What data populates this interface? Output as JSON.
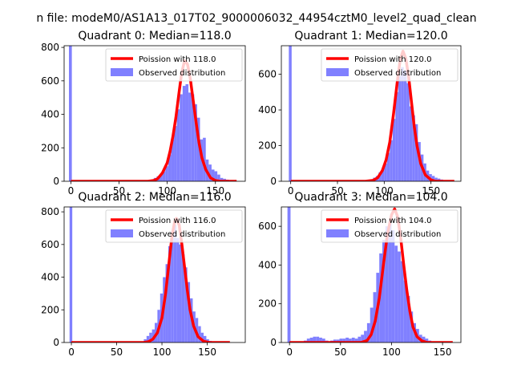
{
  "figure": {
    "suptitle": "n file: modeM0/AS1A13_017T02_9000006032_44954cztM0_level2_quad_clean"
  },
  "chart_data": [
    {
      "type": "bar",
      "title": "Quadrant 0: Median=118.0",
      "xlim": [
        -7,
        181
      ],
      "ylim": [
        0,
        810
      ],
      "xticks": [
        0,
        50,
        100,
        150
      ],
      "yticks": [
        0,
        200,
        400,
        600,
        800
      ],
      "legend": {
        "placement": "top-right",
        "entries": [
          "Poission with 118.0",
          "Observed distribution"
        ]
      },
      "histogram": {
        "name": "Observed distribution",
        "color": "#8080ff",
        "bin_width": 3,
        "bins": [
          [
            -2,
            1,
            810
          ],
          [
            86,
            89,
            20
          ],
          [
            89,
            92,
            30
          ],
          [
            92,
            95,
            40
          ],
          [
            95,
            98,
            60
          ],
          [
            98,
            101,
            90
          ],
          [
            101,
            104,
            160
          ],
          [
            104,
            107,
            250
          ],
          [
            107,
            110,
            330
          ],
          [
            110,
            113,
            430
          ],
          [
            113,
            116,
            520
          ],
          [
            116,
            119,
            570
          ],
          [
            119,
            122,
            580
          ],
          [
            122,
            125,
            530
          ],
          [
            125,
            128,
            520
          ],
          [
            128,
            131,
            460
          ],
          [
            131,
            134,
            380
          ],
          [
            134,
            137,
            250
          ],
          [
            137,
            140,
            260
          ],
          [
            140,
            143,
            130
          ],
          [
            143,
            146,
            100
          ],
          [
            146,
            149,
            70
          ],
          [
            149,
            152,
            60
          ],
          [
            152,
            155,
            40
          ],
          [
            155,
            158,
            20
          ],
          [
            158,
            161,
            15
          ],
          [
            161,
            164,
            10
          ]
        ]
      },
      "curve": {
        "name": "Poission with 118.0",
        "color": "#ff0000",
        "lambda": 118,
        "x_range": [
          0,
          172
        ],
        "samples": [
          [
            0,
            0
          ],
          [
            80,
            0
          ],
          [
            86,
            5
          ],
          [
            90,
            15
          ],
          [
            95,
            50
          ],
          [
            100,
            110
          ],
          [
            103,
            180
          ],
          [
            106,
            270
          ],
          [
            109,
            380
          ],
          [
            112,
            520
          ],
          [
            115,
            650
          ],
          [
            118,
            720
          ],
          [
            121,
            700
          ],
          [
            124,
            610
          ],
          [
            127,
            480
          ],
          [
            130,
            350
          ],
          [
            133,
            230
          ],
          [
            136,
            140
          ],
          [
            140,
            70
          ],
          [
            145,
            20
          ],
          [
            150,
            5
          ],
          [
            155,
            0
          ],
          [
            172,
            0
          ]
        ]
      }
    },
    {
      "type": "bar",
      "title": "Quadrant 1: Median=120.0",
      "xlim": [
        -10,
        182
      ],
      "ylim": [
        0,
        760
      ],
      "xticks": [
        0,
        50,
        100,
        150
      ],
      "yticks": [
        0,
        200,
        400,
        600
      ],
      "legend": {
        "placement": "top-right",
        "entries": [
          "Poission with 120.0",
          "Observed distribution"
        ]
      },
      "histogram": {
        "name": "Observed distribution",
        "color": "#8080ff",
        "bin_width": 3,
        "bins": [
          [
            -2,
            1,
            760
          ],
          [
            10,
            13,
            3
          ],
          [
            20,
            23,
            3
          ],
          [
            40,
            43,
            2
          ],
          [
            60,
            63,
            2
          ],
          [
            85,
            88,
            10
          ],
          [
            88,
            91,
            20
          ],
          [
            91,
            94,
            30
          ],
          [
            94,
            97,
            50
          ],
          [
            97,
            100,
            70
          ],
          [
            100,
            103,
            100
          ],
          [
            103,
            106,
            160
          ],
          [
            106,
            109,
            230
          ],
          [
            109,
            112,
            350
          ],
          [
            112,
            115,
            500
          ],
          [
            115,
            118,
            590
          ],
          [
            118,
            121,
            640
          ],
          [
            121,
            124,
            620
          ],
          [
            124,
            127,
            550
          ],
          [
            127,
            130,
            420
          ],
          [
            130,
            133,
            370
          ],
          [
            133,
            136,
            320
          ],
          [
            136,
            139,
            220
          ],
          [
            139,
            142,
            150
          ],
          [
            142,
            145,
            100
          ],
          [
            145,
            148,
            60
          ],
          [
            148,
            151,
            40
          ],
          [
            151,
            154,
            30
          ],
          [
            154,
            157,
            20
          ],
          [
            157,
            160,
            15
          ],
          [
            160,
            163,
            10
          ],
          [
            163,
            166,
            5
          ]
        ]
      },
      "curve": {
        "name": "Poission with 120.0",
        "color": "#ff0000",
        "lambda": 120,
        "x_range": [
          0,
          175
        ],
        "samples": [
          [
            0,
            0
          ],
          [
            80,
            0
          ],
          [
            88,
            5
          ],
          [
            93,
            20
          ],
          [
            98,
            60
          ],
          [
            102,
            120
          ],
          [
            106,
            220
          ],
          [
            110,
            380
          ],
          [
            114,
            560
          ],
          [
            117,
            680
          ],
          [
            120,
            730
          ],
          [
            123,
            690
          ],
          [
            126,
            590
          ],
          [
            129,
            450
          ],
          [
            132,
            310
          ],
          [
            135,
            200
          ],
          [
            139,
            100
          ],
          [
            144,
            35
          ],
          [
            150,
            8
          ],
          [
            155,
            0
          ],
          [
            175,
            0
          ]
        ]
      }
    },
    {
      "type": "bar",
      "title": "Quadrant 2: Median=116.0",
      "xlim": [
        -8,
        192
      ],
      "ylim": [
        0,
        830
      ],
      "xticks": [
        0,
        50,
        100,
        150
      ],
      "yticks": [
        0,
        200,
        400,
        600,
        800
      ],
      "legend": {
        "placement": "top-right",
        "entries": [
          "Poission with 116.0",
          "Observed distribution"
        ]
      },
      "histogram": {
        "name": "Observed distribution",
        "color": "#8080ff",
        "bin_width": 3,
        "bins": [
          [
            -2,
            1,
            830
          ],
          [
            80,
            83,
            20
          ],
          [
            83,
            86,
            40
          ],
          [
            86,
            89,
            60
          ],
          [
            89,
            92,
            80
          ],
          [
            92,
            95,
            120
          ],
          [
            95,
            98,
            200
          ],
          [
            98,
            101,
            300
          ],
          [
            101,
            104,
            400
          ],
          [
            104,
            107,
            480
          ],
          [
            107,
            110,
            590
          ],
          [
            110,
            113,
            680
          ],
          [
            113,
            116,
            720
          ],
          [
            116,
            119,
            640
          ],
          [
            119,
            122,
            600
          ],
          [
            122,
            125,
            540
          ],
          [
            125,
            128,
            460
          ],
          [
            128,
            131,
            370
          ],
          [
            131,
            134,
            270
          ],
          [
            134,
            137,
            190
          ],
          [
            137,
            140,
            150
          ],
          [
            140,
            143,
            100
          ],
          [
            143,
            146,
            60
          ],
          [
            146,
            149,
            40
          ],
          [
            149,
            152,
            20
          ],
          [
            152,
            155,
            10
          ]
        ]
      },
      "curve": {
        "name": "Poission with 116.0",
        "color": "#ff0000",
        "lambda": 116,
        "x_range": [
          0,
          175
        ],
        "samples": [
          [
            0,
            0
          ],
          [
            80,
            0
          ],
          [
            85,
            5
          ],
          [
            90,
            20
          ],
          [
            95,
            60
          ],
          [
            100,
            150
          ],
          [
            104,
            300
          ],
          [
            108,
            500
          ],
          [
            111,
            650
          ],
          [
            114,
            740
          ],
          [
            116,
            760
          ],
          [
            119,
            720
          ],
          [
            122,
            600
          ],
          [
            125,
            460
          ],
          [
            128,
            320
          ],
          [
            131,
            200
          ],
          [
            135,
            100
          ],
          [
            140,
            35
          ],
          [
            146,
            8
          ],
          [
            152,
            0
          ],
          [
            175,
            0
          ]
        ]
      }
    },
    {
      "type": "bar",
      "title": "Quadrant 3: Median=104.0",
      "xlim": [
        -8,
        168
      ],
      "ylim": [
        0,
        700
      ],
      "xticks": [
        0,
        50,
        100,
        150
      ],
      "yticks": [
        0,
        200,
        400,
        600
      ],
      "legend": {
        "placement": "top-right",
        "entries": [
          "Poission with 104.0",
          "Observed distribution"
        ]
      },
      "histogram": {
        "name": "Observed distribution",
        "color": "#8080ff",
        "bin_width": 3,
        "bins": [
          [
            -2,
            1,
            700
          ],
          [
            14,
            17,
            10
          ],
          [
            17,
            20,
            20
          ],
          [
            20,
            23,
            25
          ],
          [
            23,
            26,
            30
          ],
          [
            26,
            29,
            30
          ],
          [
            29,
            32,
            25
          ],
          [
            32,
            35,
            20
          ],
          [
            35,
            38,
            10
          ],
          [
            40,
            43,
            10
          ],
          [
            43,
            46,
            15
          ],
          [
            46,
            49,
            15
          ],
          [
            49,
            52,
            20
          ],
          [
            52,
            55,
            20
          ],
          [
            55,
            58,
            25
          ],
          [
            58,
            61,
            20
          ],
          [
            61,
            64,
            25
          ],
          [
            64,
            67,
            20
          ],
          [
            67,
            70,
            30
          ],
          [
            70,
            73,
            40
          ],
          [
            73,
            76,
            60
          ],
          [
            76,
            79,
            100
          ],
          [
            79,
            82,
            180
          ],
          [
            82,
            85,
            260
          ],
          [
            85,
            88,
            360
          ],
          [
            88,
            91,
            460
          ],
          [
            91,
            94,
            530
          ],
          [
            94,
            97,
            600
          ],
          [
            97,
            100,
            620
          ],
          [
            100,
            103,
            580
          ],
          [
            103,
            106,
            500
          ],
          [
            106,
            109,
            470
          ],
          [
            109,
            112,
            420
          ],
          [
            112,
            115,
            320
          ],
          [
            115,
            118,
            240
          ],
          [
            118,
            121,
            160
          ],
          [
            121,
            124,
            100
          ],
          [
            124,
            127,
            70
          ],
          [
            127,
            130,
            40
          ],
          [
            130,
            133,
            30
          ],
          [
            133,
            136,
            20
          ],
          [
            136,
            139,
            10
          ],
          [
            139,
            142,
            5
          ]
        ]
      },
      "curve": {
        "name": "Poission with 104.0",
        "color": "#ff0000",
        "lambda": 104,
        "x_range": [
          0,
          160
        ],
        "samples": [
          [
            0,
            0
          ],
          [
            70,
            0
          ],
          [
            76,
            10
          ],
          [
            80,
            40
          ],
          [
            84,
            110
          ],
          [
            88,
            230
          ],
          [
            92,
            400
          ],
          [
            96,
            560
          ],
          [
            100,
            660
          ],
          [
            103,
            690
          ],
          [
            106,
            650
          ],
          [
            109,
            540
          ],
          [
            112,
            400
          ],
          [
            115,
            270
          ],
          [
            118,
            160
          ],
          [
            121,
            80
          ],
          [
            125,
            30
          ],
          [
            130,
            8
          ],
          [
            135,
            0
          ],
          [
            160,
            0
          ]
        ]
      }
    }
  ]
}
